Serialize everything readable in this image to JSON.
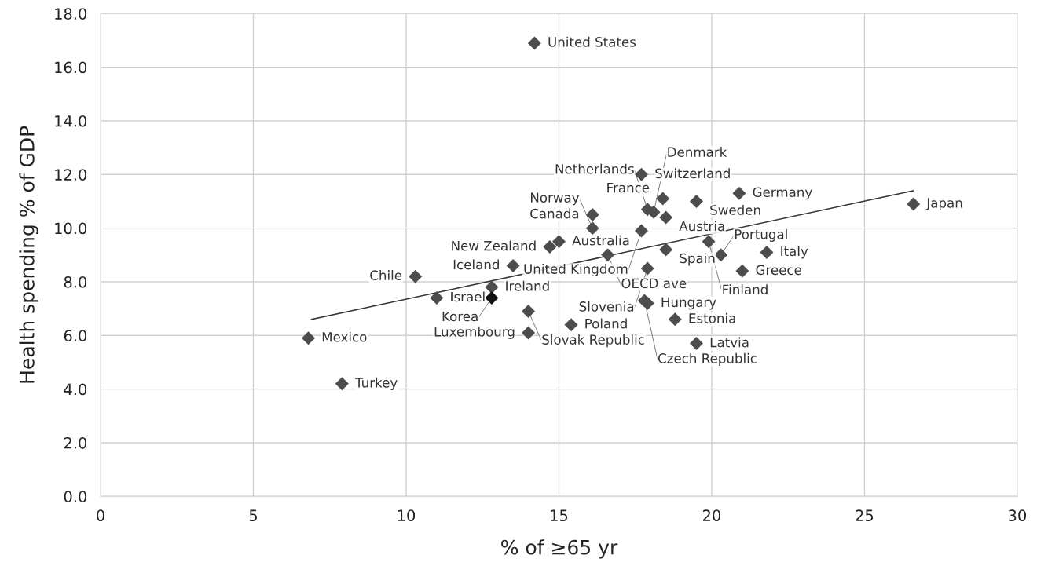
{
  "chart_data": {
    "type": "scatter",
    "xlabel": "% of ≥65 yr",
    "ylabel": "Health spending % of GDP",
    "xlim": [
      0,
      30
    ],
    "xticks": [
      0,
      5,
      10,
      15,
      20,
      25,
      30
    ],
    "ylim": [
      0,
      18
    ],
    "yticks": [
      {
        "value": 0,
        "label": "0.0"
      },
      {
        "value": 2,
        "label": "2.0"
      },
      {
        "value": 4,
        "label": "4.0"
      },
      {
        "value": 6,
        "label": "6.0"
      },
      {
        "value": 8,
        "label": "8.0"
      },
      {
        "value": 10,
        "label": "10.0"
      },
      {
        "value": 12,
        "label": "12.0"
      },
      {
        "value": 14,
        "label": "14.0"
      },
      {
        "value": 16,
        "label": "16.0"
      },
      {
        "value": 18,
        "label": "18.0"
      }
    ],
    "grid": true,
    "marker": "diamond",
    "series": [
      {
        "color": "#4d4d4d",
        "x": [
          14.2,
          17.7,
          18.4,
          19.5,
          20.9,
          26.6,
          17.9,
          16.1,
          18.1,
          18.5,
          16.1,
          17.7,
          19.9,
          14.7,
          15.0,
          16.6,
          18.5,
          17.9,
          20.3,
          21.8,
          21.0,
          13.5,
          10.3,
          11.0,
          12.8,
          12.8,
          14.0,
          15.4,
          14.0,
          6.8,
          7.9,
          17.8,
          17.9,
          18.8,
          19.5
        ],
        "values": [
          16.9,
          12.0,
          11.1,
          11.0,
          11.3,
          10.9,
          10.7,
          10.5,
          10.6,
          10.4,
          10.0,
          9.9,
          9.5,
          9.3,
          9.5,
          9.0,
          9.2,
          8.5,
          9.0,
          9.1,
          8.4,
          8.6,
          8.2,
          7.4,
          7.8,
          7.4,
          6.9,
          6.4,
          6.1,
          5.9,
          4.2,
          7.3,
          7.2,
          6.6,
          5.7
        ],
        "colors": [
          "#4d4d4d",
          "#4d4d4d",
          "#4d4d4d",
          "#4d4d4d",
          "#4d4d4d",
          "#4d4d4d",
          "#4d4d4d",
          "#4d4d4d",
          "#4d4d4d",
          "#4d4d4d",
          "#4d4d4d",
          "#4d4d4d",
          "#4d4d4d",
          "#4d4d4d",
          "#4d4d4d",
          "#4d4d4d",
          "#4d4d4d",
          "#4d4d4d",
          "#4d4d4d",
          "#4d4d4d",
          "#4d4d4d",
          "#4d4d4d",
          "#4d4d4d",
          "#4d4d4d",
          "#4d4d4d",
          "#111111",
          "#4d4d4d",
          "#4d4d4d",
          "#4d4d4d",
          "#4d4d4d",
          "#4d4d4d",
          "#4d4d4d",
          "#4d4d4d",
          "#4d4d4d",
          "#4d4d4d"
        ]
      },
      {
        "type": "line",
        "color": "#333333",
        "x": [
          6.9,
          26.6
        ],
        "values": [
          6.6,
          11.4
        ],
        "marker": "none"
      }
    ],
    "annotations": [
      {
        "text": "United States",
        "x": 14.2,
        "y": 16.9
      },
      {
        "text": "Switzerland",
        "x": 17.7,
        "y": 12.0
      },
      {
        "text": "France",
        "x": 18.4,
        "y": 11.1
      },
      {
        "text": "Sweden",
        "x": 19.5,
        "y": 11.0
      },
      {
        "text": "Germany",
        "x": 20.9,
        "y": 11.3
      },
      {
        "text": "Japan",
        "x": 26.6,
        "y": 10.9
      },
      {
        "text": "Netherlands",
        "x": 17.9,
        "y": 10.7
      },
      {
        "text": "Canada",
        "x": 16.1,
        "y": 10.5
      },
      {
        "text": "Denmark",
        "x": 18.1,
        "y": 10.6
      },
      {
        "text": "Austria",
        "x": 18.5,
        "y": 10.4
      },
      {
        "text": "Norway",
        "x": 16.1,
        "y": 10.0
      },
      {
        "text": "United Kingdom",
        "x": 17.7,
        "y": 9.9
      },
      {
        "text": "Finland",
        "x": 19.9,
        "y": 9.5
      },
      {
        "text": "New Zealand",
        "x": 14.7,
        "y": 9.3
      },
      {
        "text": "Australia",
        "x": 15.0,
        "y": 9.5
      },
      {
        "text": "OECD ave",
        "x": 16.6,
        "y": 9.0
      },
      {
        "text": "Spain",
        "x": 18.5,
        "y": 9.2
      },
      {
        "text": "Slovenia",
        "x": 17.9,
        "y": 8.5
      },
      {
        "text": "Portugal",
        "x": 20.3,
        "y": 9.0
      },
      {
        "text": "Italy",
        "x": 21.8,
        "y": 9.1
      },
      {
        "text": "Greece",
        "x": 21.0,
        "y": 8.4
      },
      {
        "text": "Iceland",
        "x": 13.5,
        "y": 8.6
      },
      {
        "text": "Chile",
        "x": 10.3,
        "y": 8.2
      },
      {
        "text": "Israel",
        "x": 11.0,
        "y": 7.4
      },
      {
        "text": "Ireland",
        "x": 12.8,
        "y": 7.8
      },
      {
        "text": "Korea",
        "x": 12.8,
        "y": 7.4
      },
      {
        "text": "Slovak Republic",
        "x": 14.0,
        "y": 6.9
      },
      {
        "text": "Poland",
        "x": 15.4,
        "y": 6.4
      },
      {
        "text": "Luxembourg",
        "x": 14.0,
        "y": 6.1
      },
      {
        "text": "Mexico",
        "x": 6.8,
        "y": 5.9
      },
      {
        "text": "Turkey",
        "x": 7.9,
        "y": 4.2
      },
      {
        "text": "Czech Republic",
        "x": 17.8,
        "y": 7.3
      },
      {
        "text": "Hungary",
        "x": 17.9,
        "y": 7.2
      },
      {
        "text": "Estonia",
        "x": 18.8,
        "y": 6.6
      },
      {
        "text": "Latvia",
        "x": 19.5,
        "y": 5.7
      }
    ]
  }
}
